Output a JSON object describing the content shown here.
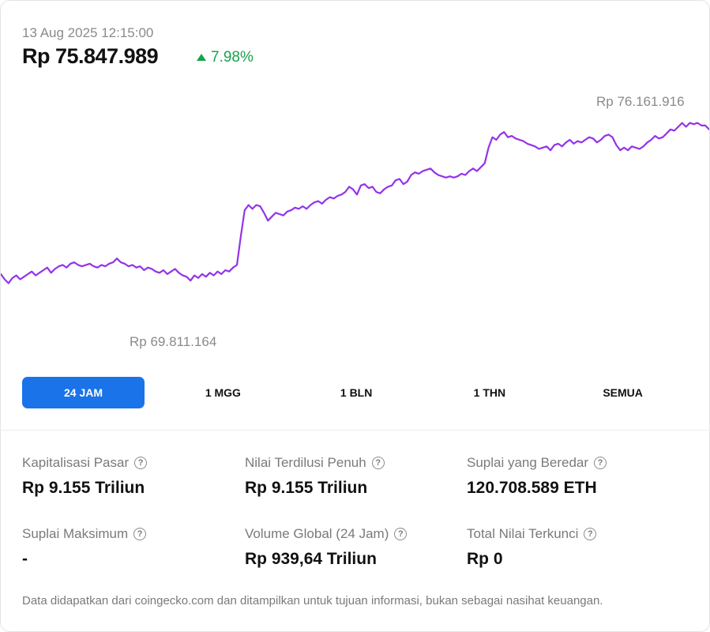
{
  "header": {
    "timestamp": "13 Aug 2025 12:15:00",
    "price": "Rp 75.847.989",
    "change": "7.98%",
    "change_color": "#16a34a"
  },
  "chart_data": {
    "type": "line",
    "line_color": "#9333ea",
    "grid": false,
    "high_label": "Rp 76.161.916",
    "low_label": "Rp 69.811.164",
    "ylim": [
      67500000,
      77500000
    ],
    "series": [
      {
        "values": [
          70350000,
          70150000,
          70000000,
          70200000,
          70300000,
          70150000,
          70250000,
          70350000,
          70450000,
          70300000,
          70400000,
          70500000,
          70600000,
          70400000,
          70550000,
          70650000,
          70700000,
          70600000,
          70750000,
          70800000,
          70700000,
          70650000,
          70700000,
          70750000,
          70650000,
          70600000,
          70700000,
          70650000,
          70750000,
          70800000,
          70950000,
          70800000,
          70750000,
          70650000,
          70700000,
          70600000,
          70650000,
          70500000,
          70600000,
          70550000,
          70450000,
          70400000,
          70500000,
          70350000,
          70450000,
          70550000,
          70400000,
          70300000,
          70250000,
          70100000,
          70300000,
          70200000,
          70350000,
          70250000,
          70400000,
          70300000,
          70450000,
          70350000,
          70500000,
          70450000,
          70600000,
          70700000,
          71800000,
          72800000,
          73000000,
          72850000,
          73000000,
          72950000,
          72700000,
          72400000,
          72550000,
          72700000,
          72650000,
          72600000,
          72750000,
          72800000,
          72900000,
          72850000,
          72950000,
          72850000,
          73000000,
          73100000,
          73150000,
          73050000,
          73200000,
          73300000,
          73250000,
          73350000,
          73400000,
          73500000,
          73700000,
          73600000,
          73400000,
          73750000,
          73800000,
          73650000,
          73700000,
          73500000,
          73450000,
          73600000,
          73700000,
          73750000,
          73950000,
          74000000,
          73800000,
          73900000,
          74150000,
          74250000,
          74200000,
          74300000,
          74350000,
          74400000,
          74250000,
          74150000,
          74100000,
          74050000,
          74100000,
          74050000,
          74100000,
          74200000,
          74150000,
          74300000,
          74400000,
          74300000,
          74450000,
          74600000,
          75200000,
          75600000,
          75500000,
          75700000,
          75800000,
          75600000,
          75650000,
          75550000,
          75500000,
          75450000,
          75350000,
          75300000,
          75250000,
          75150000,
          75200000,
          75250000,
          75100000,
          75300000,
          75350000,
          75250000,
          75400000,
          75500000,
          75350000,
          75450000,
          75400000,
          75500000,
          75600000,
          75550000,
          75400000,
          75500000,
          75650000,
          75700000,
          75600000,
          75300000,
          75100000,
          75200000,
          75100000,
          75250000,
          75200000,
          75150000,
          75250000,
          75400000,
          75500000,
          75650000,
          75550000,
          75600000,
          75750000,
          75900000,
          75850000,
          76000000,
          76150000,
          76000000,
          76150000,
          76100000,
          76150000,
          76050000,
          76050000,
          75900000
        ]
      }
    ]
  },
  "tabs": [
    {
      "label": "24 JAM",
      "active": true
    },
    {
      "label": "1 MGG",
      "active": false
    },
    {
      "label": "1 BLN",
      "active": false
    },
    {
      "label": "1 THN",
      "active": false
    },
    {
      "label": "SEMUA",
      "active": false
    }
  ],
  "tab_active_color": "#1a73e8",
  "stats": {
    "market_cap": {
      "label": "Kapitalisasi Pasar",
      "value": "Rp 9.155 Triliun"
    },
    "fully_diluted": {
      "label": "Nilai Terdilusi Penuh",
      "value": "Rp 9.155 Triliun"
    },
    "circulating_supply": {
      "label": "Suplai yang Beredar",
      "value": "120.708.589 ETH"
    },
    "max_supply": {
      "label": "Suplai Maksimum",
      "value": "-"
    },
    "global_volume": {
      "label": "Volume Global (24 Jam)",
      "value": "Rp 939,64 Triliun"
    },
    "tvl": {
      "label": "Total Nilai Terkunci",
      "value": "Rp 0"
    }
  },
  "help_glyph": "?",
  "footer": "Data didapatkan dari coingecko.com dan ditampilkan untuk tujuan informasi, bukan sebagai nasihat keuangan."
}
